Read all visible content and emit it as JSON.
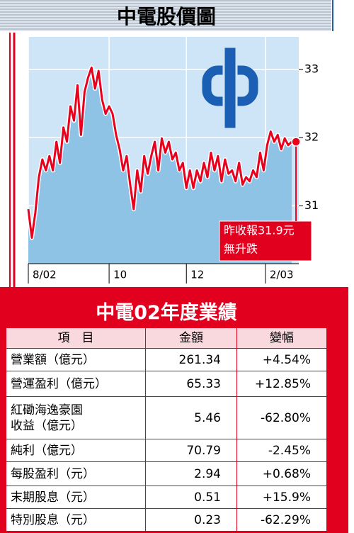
{
  "chart_data": {
    "type": "line",
    "title": "中電股價圖",
    "x": [
      0,
      1,
      2,
      3,
      4,
      5,
      6,
      7,
      8,
      9,
      10,
      11,
      12,
      13,
      14,
      15,
      16,
      17,
      18,
      19,
      20,
      21,
      22,
      23,
      24,
      25,
      26,
      27,
      28,
      29,
      30,
      31,
      32,
      33,
      34,
      35,
      36,
      37,
      38,
      39,
      40,
      41,
      42,
      43,
      44,
      45,
      46,
      47,
      48,
      49,
      50,
      51,
      52,
      53,
      54,
      55,
      56,
      57,
      58,
      59,
      60,
      61,
      62,
      63,
      64,
      65,
      66,
      67,
      68,
      69,
      70,
      71,
      72,
      73,
      74,
      75
    ],
    "values": [
      30.95,
      30.53,
      30.9,
      31.42,
      31.68,
      31.52,
      31.73,
      31.52,
      31.94,
      31.63,
      32.15,
      31.94,
      32.46,
      32.25,
      32.77,
      32.04,
      32.67,
      32.88,
      33.03,
      32.72,
      32.98,
      32.56,
      32.35,
      32.46,
      32.35,
      32.04,
      31.83,
      31.52,
      31.73,
      31.31,
      30.95,
      31.52,
      31.21,
      31.73,
      31.47,
      31.73,
      31.94,
      31.52,
      31.99,
      31.78,
      31.94,
      31.68,
      31.78,
      31.52,
      31.63,
      31.26,
      31.52,
      31.26,
      31.52,
      31.36,
      31.63,
      31.42,
      31.78,
      31.52,
      31.73,
      31.36,
      31.68,
      31.47,
      31.52,
      31.36,
      31.63,
      31.31,
      31.42,
      31.36,
      31.52,
      31.42,
      31.78,
      31.52,
      31.89,
      32.09,
      31.94,
      32.04,
      31.83,
      31.99,
      31.89,
      31.94
    ],
    "color": "#e8001c",
    "xlim": [
      0,
      77
    ],
    "xticks": [
      {
        "value": 0,
        "label": "8/02"
      },
      {
        "value": 23,
        "label": "10"
      },
      {
        "value": 45,
        "label": "12"
      },
      {
        "value": 67.5,
        "label": "2/03"
      }
    ],
    "ylim": [
      30.15,
      33.48
    ],
    "yticks": [
      31,
      32,
      33
    ],
    "grid": true,
    "annotation": [
      "昨收報31.9元",
      "無升跌"
    ]
  },
  "table": {
    "title": "中電02年度業績",
    "header": [
      "項　目",
      "金額",
      "變幅"
    ],
    "rows": [
      [
        "營業額（億元）",
        "261.34",
        "+4.54%"
      ],
      [
        "營運盈利（億元）",
        "65.33",
        "+12.85%"
      ],
      [
        "紅磡海逸豪園\n收益（億元）",
        "5.46",
        "-62.80%"
      ],
      [
        "純利（億元）",
        "70.79",
        "-2.45%"
      ],
      [
        "每股盈利（元）",
        "2.94",
        "+0.68%"
      ],
      [
        "末期股息（元）",
        "0.51",
        "+15.9%"
      ],
      [
        "特別股息（元）",
        "0.23",
        "-62.29%"
      ]
    ]
  }
}
